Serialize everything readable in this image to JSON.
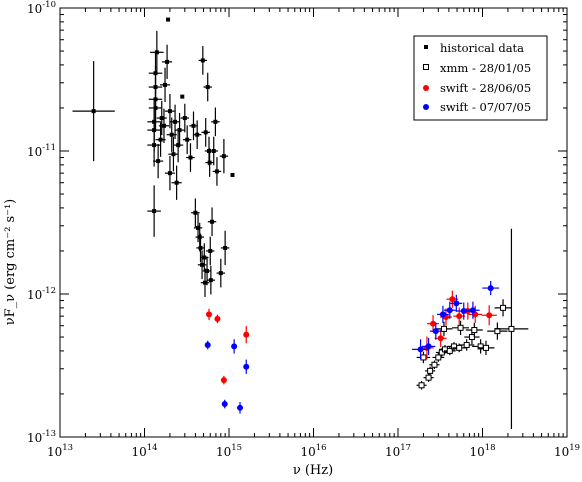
{
  "chart_data": {
    "type": "scatter",
    "xlabel": "ν (Hz)",
    "ylabel": "νF_ν (erg cm⁻² s⁻¹)",
    "xscale": "log",
    "yscale": "log",
    "xlim": [
      10000000000000.0,
      1e+19
    ],
    "ylim": [
      1e-13,
      1e-10
    ],
    "x_ticks": [
      {
        "value": 10000000000000.0,
        "base": "10",
        "exp": "13"
      },
      {
        "value": 100000000000000.0,
        "base": "10",
        "exp": "14"
      },
      {
        "value": 1000000000000000.0,
        "base": "10",
        "exp": "15"
      },
      {
        "value": 1e+16,
        "base": "10",
        "exp": "16"
      },
      {
        "value": 1e+17,
        "base": "10",
        "exp": "17"
      },
      {
        "value": 1e+18,
        "base": "10",
        "exp": "18"
      },
      {
        "value": 1e+19,
        "base": "10",
        "exp": "19"
      }
    ],
    "y_ticks": [
      {
        "value": 1e-13,
        "base": "10",
        "exp": "-13"
      },
      {
        "value": 1e-12,
        "base": "10",
        "exp": "-12"
      },
      {
        "value": 1e-11,
        "base": "10",
        "exp": "-11"
      },
      {
        "value": 1e-10,
        "base": "10",
        "exp": "-10"
      }
    ],
    "grid": false,
    "legend_position": "top-right",
    "series": [
      {
        "name": "historical data",
        "color": "#000000",
        "marker": "filled-square",
        "points": [
          [
            25000000000000.0,
            1.9e-11,
            0.25,
            0.35
          ],
          [
            130000000000000.0,
            3.8e-12,
            0.08,
            0.18
          ],
          [
            130000000000000.0,
            1.1e-11,
            0.08,
            0.15
          ],
          [
            130000000000000.0,
            1.4e-11,
            0.08,
            0.15
          ],
          [
            130000000000000.0,
            1.6e-11,
            0.08,
            0.15
          ],
          [
            135000000000000.0,
            2e-11,
            0.08,
            0.15
          ],
          [
            135000000000000.0,
            2.3e-11,
            0.08,
            0.15
          ],
          [
            135000000000000.0,
            2.8e-11,
            0.08,
            0.15
          ],
          [
            135000000000000.0,
            3.5e-11,
            0.08,
            0.15
          ],
          [
            140000000000000.0,
            4.9e-11,
            0.08,
            0.15
          ],
          [
            145000000000000.0,
            8.5e-12,
            0.06,
            0.12
          ],
          [
            155000000000000.0,
            1.2e-11,
            0.06,
            0.12
          ],
          [
            160000000000000.0,
            1.7e-11,
            0.06,
            0.12
          ],
          [
            170000000000000.0,
            1.5e-11,
            0.06,
            0.12
          ],
          [
            175000000000000.0,
            2.9e-11,
            0.06,
            0.12
          ],
          [
            185000000000000.0,
            4.2e-11,
            0.06,
            0.12
          ],
          [
            190000000000000.0,
            8.3e-11,
            0,
            0
          ],
          [
            200000000000000.0,
            1.9e-11,
            0.06,
            0.12
          ],
          [
            200000000000000.0,
            7e-12,
            0.06,
            0.12
          ],
          [
            210000000000000.0,
            1.3e-11,
            0.06,
            0.12
          ],
          [
            220000000000000.0,
            9.5e-12,
            0.06,
            0.12
          ],
          [
            230000000000000.0,
            1.6e-11,
            0.06,
            0.12
          ],
          [
            240000000000000.0,
            6e-12,
            0.06,
            0.12
          ],
          [
            250000000000000.0,
            1.1e-11,
            0.06,
            0.12
          ],
          [
            260000000000000.0,
            1.4e-11,
            0.06,
            0.12
          ],
          [
            280000000000000.0,
            2.4e-11,
            0,
            0
          ],
          [
            300000000000000.0,
            1.7e-11,
            0.05,
            0.1
          ],
          [
            320000000000000.0,
            1.2e-11,
            0.05,
            0.1
          ],
          [
            350000000000000.0,
            9e-12,
            0.05,
            0.1
          ],
          [
            380000000000000.0,
            1.5e-11,
            0.05,
            0.1
          ],
          [
            400000000000000.0,
            3.7e-12,
            0.05,
            0.1
          ],
          [
            420000000000000.0,
            1.3e-11,
            0.05,
            0.1
          ],
          [
            430000000000000.0,
            2.9e-12,
            0.05,
            0.1
          ],
          [
            450000000000000.0,
            2.5e-12,
            0.05,
            0.1
          ],
          [
            460000000000000.0,
            2.1e-12,
            0.05,
            0.1
          ],
          [
            480000000000000.0,
            1.6e-12,
            0.05,
            0.1
          ],
          [
            490000000000000.0,
            4.3e-11,
            0.05,
            0.1
          ],
          [
            510000000000000.0,
            1.8e-12,
            0.05,
            0.1
          ],
          [
            520000000000000.0,
            1.2e-12,
            0.05,
            0.1
          ],
          [
            530000000000000.0,
            1.35e-11,
            0.05,
            0.1
          ],
          [
            550000000000000.0,
            1.45e-12,
            0.05,
            0.1
          ],
          [
            560000000000000.0,
            2.8e-11,
            0.05,
            0.1
          ],
          [
            580000000000000.0,
            1e-11,
            0.05,
            0.1
          ],
          [
            590000000000000.0,
            8.3e-12,
            0.05,
            0.1
          ],
          [
            600000000000000.0,
            2e-12,
            0.05,
            0.1
          ],
          [
            610000000000000.0,
            1.25e-12,
            0.05,
            0.1
          ],
          [
            630000000000000.0,
            3.2e-12,
            0.05,
            0.1
          ],
          [
            660000000000000.0,
            1e-11,
            0.05,
            0.1
          ],
          [
            690000000000000.0,
            1.6e-11,
            0.05,
            0.1
          ],
          [
            720000000000000.0,
            7.2e-12,
            0.05,
            0.1
          ],
          [
            800000000000000.0,
            1.4e-12,
            0.05,
            0.1
          ],
          [
            870000000000000.0,
            9.2e-12,
            0.05,
            0.12
          ],
          [
            900000000000000.0,
            2.1e-12,
            0.05,
            0.12
          ],
          [
            1100000000000000.0,
            6.8e-12,
            0,
            0
          ]
        ]
      },
      {
        "name": "xmm - 28/01/05",
        "color": "#000000",
        "marker": "open-square",
        "points": [
          [
            1.9e+17,
            2.3e-13,
            0.06,
            0.03
          ],
          [
            2.3e+17,
            2.6e-13,
            0.06,
            0.03
          ],
          [
            2.4e+17,
            2.9e-13,
            0.06,
            0.03
          ],
          [
            2.7e+17,
            3.2e-13,
            0.06,
            0.03
          ],
          [
            3e+17,
            3.6e-13,
            0.07,
            0.03
          ],
          [
            3.3e+17,
            3.9e-13,
            0.07,
            0.03
          ],
          [
            3.6e+17,
            4.1e-13,
            0.07,
            0.03
          ],
          [
            4.1e+17,
            4e-13,
            0.07,
            0.03
          ],
          [
            4.6e+17,
            4.3e-13,
            0.08,
            0.03
          ],
          [
            5.3e+17,
            4.2e-13,
            0.08,
            0.03
          ],
          [
            6.5e+17,
            4.4e-13,
            0.09,
            0.04
          ],
          [
            7.5e+17,
            5e-13,
            0.09,
            0.05
          ],
          [
            9.5e+17,
            4.3e-13,
            0.1,
            0.05
          ],
          [
            1.1e+18,
            4.2e-13,
            0.1,
            0.05
          ],
          [
            1.5e+18,
            5.5e-13,
            0.12,
            0.06
          ],
          [
            1.75e+18,
            8e-13,
            0.1,
            0.06
          ],
          [
            2.2e+18,
            5.7e-13,
            0.2,
            0.7
          ],
          [
            2e+17,
            3.6e-13,
            0.08,
            0.04
          ],
          [
            3.5e+17,
            5.7e-13,
            0.1,
            0.05
          ],
          [
            5.5e+17,
            5.8e-13,
            0.1,
            0.05
          ],
          [
            8e+17,
            5.6e-13,
            0.1,
            0.05
          ]
        ]
      },
      {
        "name": "swift - 28/06/05",
        "color": "#ff0000",
        "marker": "filled-circle",
        "points": [
          [
            580000000000000.0,
            7.2e-13,
            0.03,
            0.04
          ],
          [
            730000000000000.0,
            6.7e-13,
            0.03,
            0.03
          ],
          [
            870000000000000.0,
            2.5e-13,
            0.03,
            0.03
          ],
          [
            1600000000000000.0,
            5.2e-13,
            0.03,
            0.06
          ],
          [
            2.2e+17,
            4.2e-13,
            0.08,
            0.08
          ],
          [
            2.6e+17,
            6.2e-13,
            0.07,
            0.06
          ],
          [
            3.2e+17,
            4.9e-13,
            0.07,
            0.06
          ],
          [
            3.7e+17,
            6.9e-13,
            0.07,
            0.06
          ],
          [
            4.4e+17,
            9.2e-13,
            0.07,
            0.06
          ],
          [
            5.3e+17,
            7e-13,
            0.07,
            0.06
          ],
          [
            6.7e+17,
            7.6e-13,
            0.08,
            0.06
          ],
          [
            8.2e+17,
            7.2e-13,
            0.08,
            0.06
          ],
          [
            1.2e+18,
            7.1e-13,
            0.09,
            0.07
          ]
        ]
      },
      {
        "name": "swift - 07/07/05",
        "color": "#0000ff",
        "marker": "filled-circle",
        "points": [
          [
            560000000000000.0,
            4.4e-13,
            0.03,
            0.03
          ],
          [
            890000000000000.0,
            1.7e-13,
            0.03,
            0.03
          ],
          [
            1150000000000000.0,
            4.3e-13,
            0.03,
            0.05
          ],
          [
            1350000000000000.0,
            1.6e-13,
            0.03,
            0.04
          ],
          [
            1600000000000000.0,
            3.1e-13,
            0.03,
            0.05
          ],
          [
            1.85e+17,
            4.1e-13,
            0.1,
            0.07
          ],
          [
            2.3e+17,
            4.3e-13,
            0.08,
            0.06
          ],
          [
            2.8e+17,
            5.5e-13,
            0.07,
            0.06
          ],
          [
            3.4e+17,
            7.2e-13,
            0.07,
            0.06
          ],
          [
            4.1e+17,
            7.7e-13,
            0.07,
            0.06
          ],
          [
            4.9e+17,
            8.6e-13,
            0.07,
            0.06
          ],
          [
            6e+17,
            7.6e-13,
            0.08,
            0.06
          ],
          [
            7.7e+17,
            7.7e-13,
            0.08,
            0.06
          ],
          [
            1.25e+18,
            1.1e-12,
            0.1,
            0.05
          ]
        ]
      }
    ]
  }
}
